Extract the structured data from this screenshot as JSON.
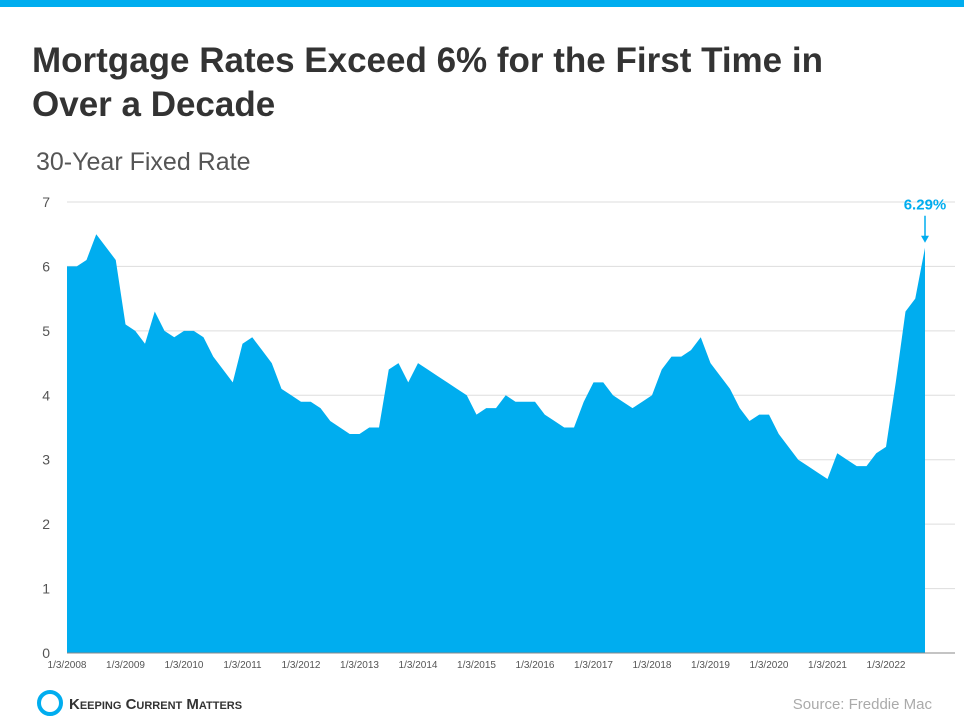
{
  "chart_data": {
    "type": "area",
    "title": "Mortgage Rates Exceed 6% for the First Time in Over a Decade",
    "subtitle": "30-Year Fixed Rate",
    "source": "Source: Freddie Mac",
    "brand": "Keeping Current Matters",
    "color": "#00adef",
    "categories": [
      "1/3/2008",
      null,
      null,
      null,
      null,
      null,
      "1/3/2009",
      null,
      null,
      null,
      null,
      null,
      "1/3/2010",
      null,
      null,
      null,
      null,
      null,
      "1/3/2011",
      null,
      null,
      null,
      null,
      null,
      "1/3/2012",
      null,
      null,
      null,
      null,
      null,
      "1/3/2013",
      null,
      null,
      null,
      null,
      null,
      "1/3/2014",
      null,
      null,
      null,
      null,
      null,
      "1/3/2015",
      null,
      null,
      null,
      null,
      null,
      "1/3/2016",
      null,
      null,
      null,
      null,
      null,
      "1/3/2017",
      null,
      null,
      null,
      null,
      null,
      "1/3/2018",
      null,
      null,
      null,
      null,
      null,
      "1/3/2019",
      null,
      null,
      null,
      null,
      null,
      "1/3/2020",
      null,
      null,
      null,
      null,
      null,
      "1/3/2021",
      null,
      null,
      null,
      null,
      null,
      "1/3/2022",
      null,
      null,
      null,
      null
    ],
    "values": [
      6.0,
      6.0,
      6.1,
      6.5,
      6.3,
      6.1,
      5.1,
      5.0,
      4.8,
      5.3,
      5.0,
      4.9,
      5.0,
      5.0,
      4.9,
      4.6,
      4.4,
      4.2,
      4.8,
      4.9,
      4.7,
      4.5,
      4.1,
      4.0,
      3.9,
      3.9,
      3.8,
      3.6,
      3.5,
      3.4,
      3.4,
      3.5,
      3.5,
      4.4,
      4.5,
      4.2,
      4.5,
      4.4,
      4.3,
      4.2,
      4.1,
      4.0,
      3.7,
      3.8,
      3.8,
      4.0,
      3.9,
      3.9,
      3.9,
      3.7,
      3.6,
      3.5,
      3.5,
      3.9,
      4.2,
      4.2,
      4.0,
      3.9,
      3.8,
      3.9,
      4.0,
      4.4,
      4.6,
      4.6,
      4.7,
      4.9,
      4.5,
      4.3,
      4.1,
      3.8,
      3.6,
      3.7,
      3.7,
      3.4,
      3.2,
      3.0,
      2.9,
      2.8,
      2.7,
      3.1,
      3.0,
      2.9,
      2.9,
      3.1,
      3.2,
      4.2,
      5.3,
      5.5,
      6.29
    ],
    "value_labels": [
      null,
      null,
      null,
      null,
      null,
      null,
      null,
      null,
      null,
      null,
      null,
      null,
      null,
      null,
      null,
      null,
      null,
      null,
      null,
      null,
      null,
      null,
      null,
      null,
      null,
      null,
      null,
      null,
      null,
      null,
      null,
      null,
      null,
      null,
      null,
      null,
      null,
      null,
      null,
      null,
      null,
      null,
      null,
      null,
      null,
      null,
      null,
      null,
      null,
      null,
      null,
      null,
      null,
      null,
      null,
      null,
      null,
      null,
      null,
      null,
      null,
      null,
      null,
      null,
      null,
      null,
      null,
      null,
      null,
      null,
      null,
      null,
      null,
      null,
      null,
      null,
      null,
      null,
      null,
      null,
      null,
      null,
      null,
      null,
      null,
      null,
      null,
      null,
      "6.29%"
    ],
    "ylim": [
      0,
      7
    ],
    "yticks": [
      0,
      1,
      2,
      3,
      4,
      5,
      6,
      7
    ],
    "grid": true
  }
}
